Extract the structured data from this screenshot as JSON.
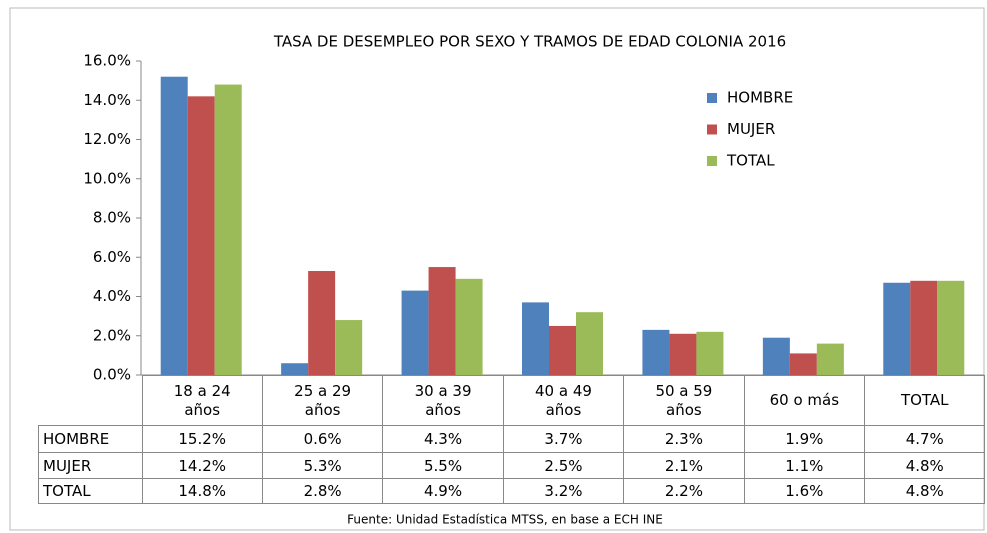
{
  "chart_data": {
    "type": "bar",
    "title": "TASA DE DESEMPLEO POR SEXO Y TRAMOS DE EDAD COLONIA 2016",
    "categories": [
      "18 a 24 años",
      "25 a 29 años",
      "30 a 39 años",
      "40 a 49 años",
      "50 a 59 años",
      "60 o más",
      "TOTAL"
    ],
    "series": [
      {
        "name": "HOMBRE",
        "color": "#4f81bd",
        "values": [
          15.2,
          0.6,
          4.3,
          3.7,
          2.3,
          1.9,
          4.7
        ],
        "value_labels": [
          "15.2%",
          "0.6%",
          "4.3%",
          "3.7%",
          "2.3%",
          "1.9%",
          "4.7%"
        ]
      },
      {
        "name": "MUJER",
        "color": "#c0504d",
        "values": [
          14.2,
          5.3,
          5.5,
          2.5,
          2.1,
          1.1,
          4.8
        ],
        "value_labels": [
          "14.2%",
          "5.3%",
          "5.5%",
          "2.5%",
          "2.1%",
          "1.1%",
          "4.8%"
        ]
      },
      {
        "name": "TOTAL",
        "color": "#9bbb59",
        "values": [
          14.8,
          2.8,
          4.9,
          3.2,
          2.2,
          1.6,
          4.8
        ],
        "value_labels": [
          "14.8%",
          "2.8%",
          "4.9%",
          "3.2%",
          "2.2%",
          "1.6%",
          "4.8%"
        ]
      }
    ],
    "ylim": [
      0,
      16
    ],
    "yticks": [
      {
        "value": 0,
        "label": "0.0%"
      },
      {
        "value": 2,
        "label": "2.0%"
      },
      {
        "value": 4,
        "label": "4.0%"
      },
      {
        "value": 6,
        "label": "6.0%"
      },
      {
        "value": 8,
        "label": "8.0%"
      },
      {
        "value": 10,
        "label": "10.0%"
      },
      {
        "value": 12,
        "label": "12.0%"
      },
      {
        "value": 14,
        "label": "14.0%"
      },
      {
        "value": 16,
        "label": "16.0%"
      }
    ],
    "grid": false,
    "legend": "upper right",
    "source": "Fuente: Unidad Estadística MTSS, en base a ECH INE"
  }
}
